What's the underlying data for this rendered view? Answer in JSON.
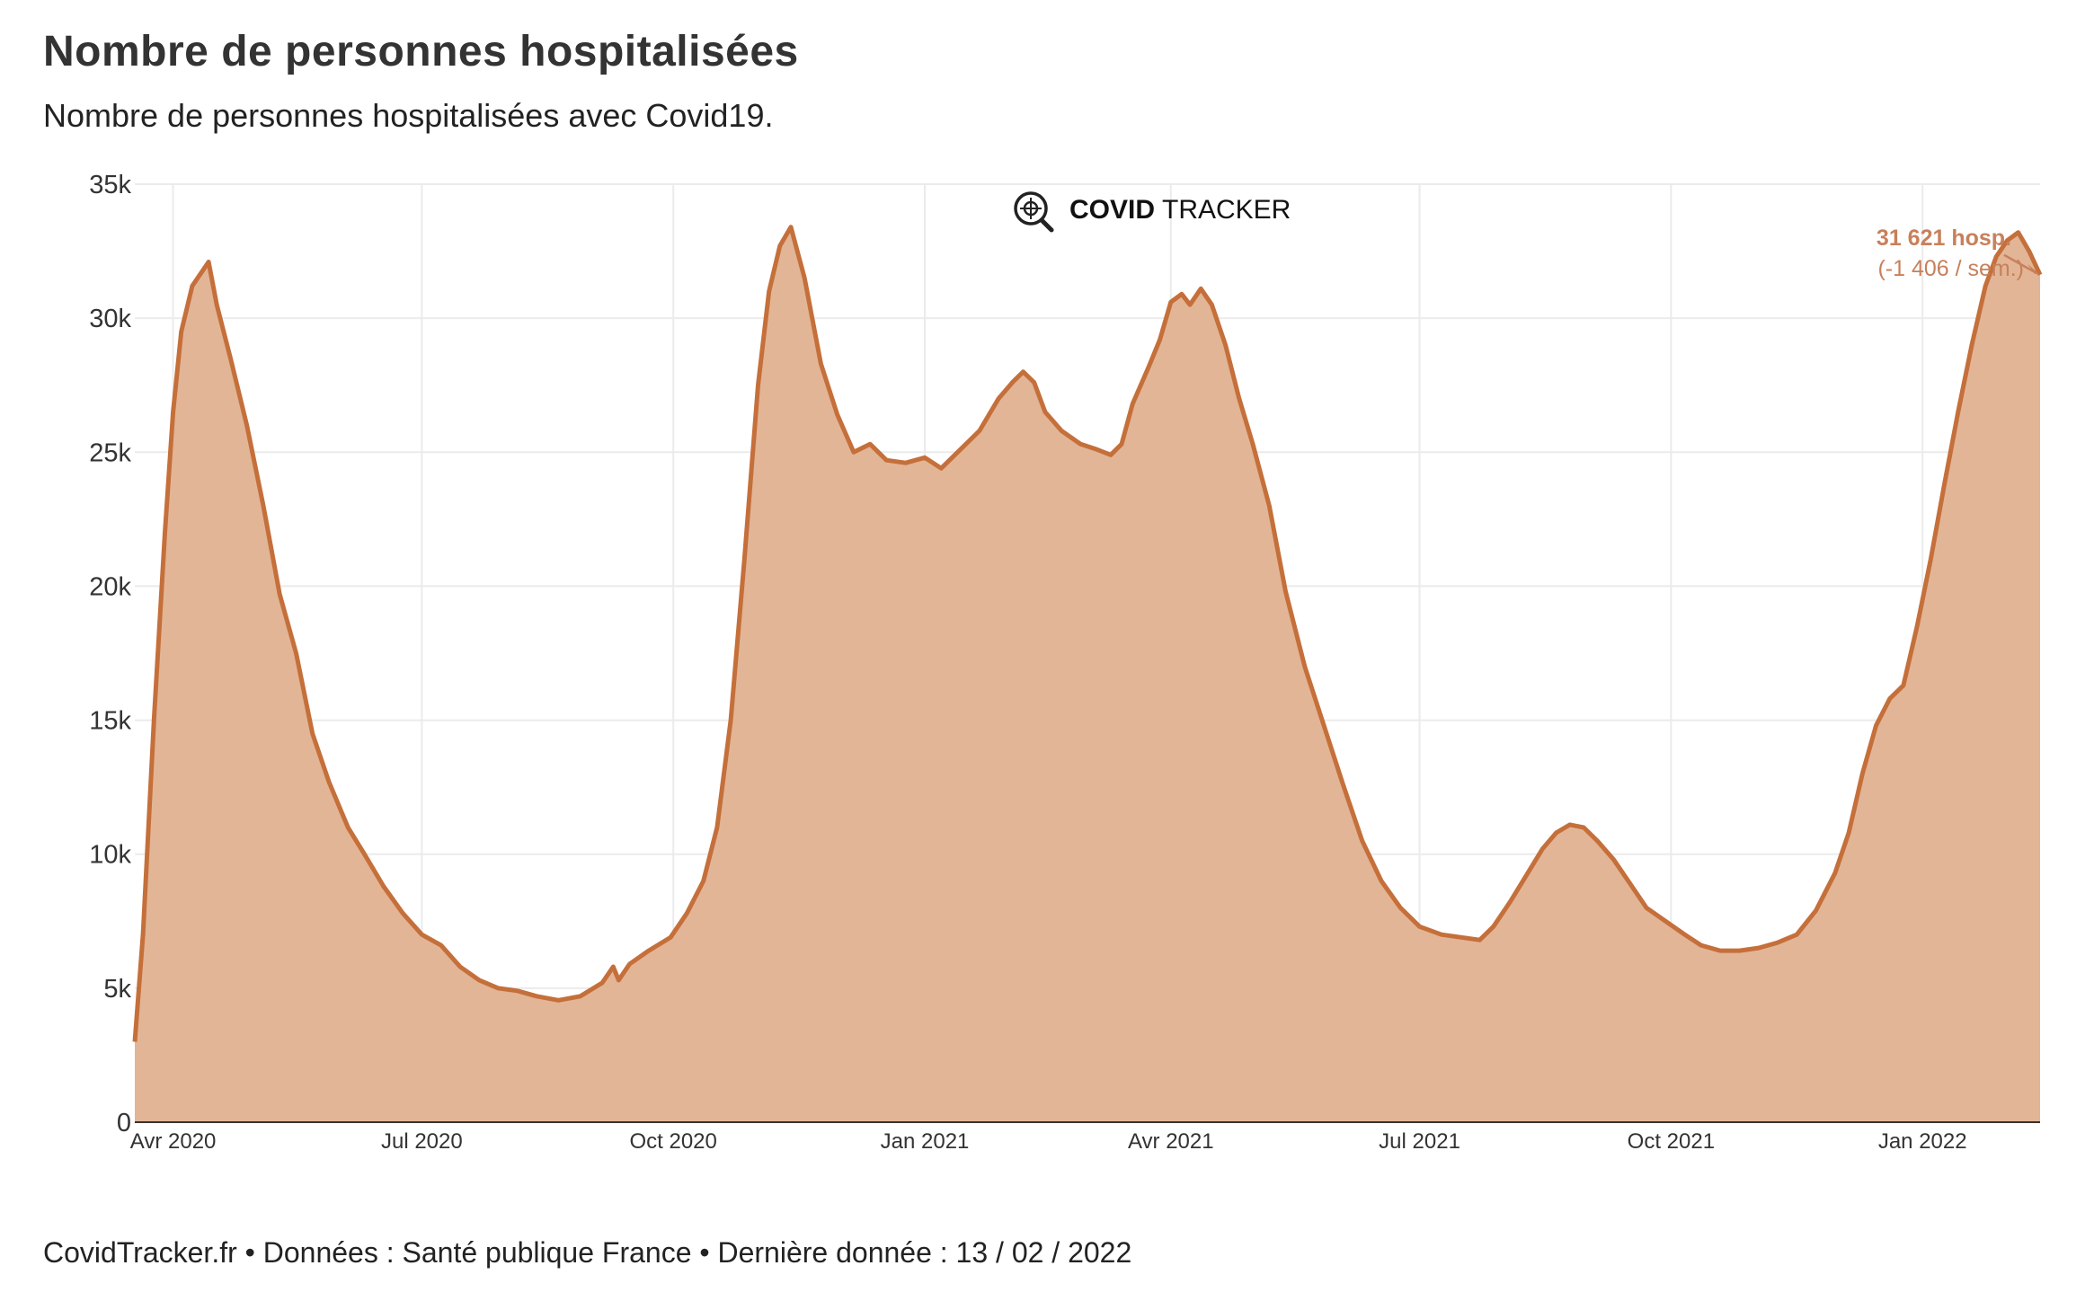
{
  "header": {
    "title": "Nombre de personnes hospitalisées",
    "subtitle": "Nombre de personnes hospitalisées avec Covid19."
  },
  "footer": {
    "text": "CovidTracker.fr • Données : Santé publique France • Dernière donnée : 13 / 02 / 2022"
  },
  "logo": {
    "icon": "virus-magnifier-icon",
    "bold": "COVID",
    "light": "TRACKER"
  },
  "colors": {
    "line": "#c56f3a",
    "fill": "#e2b596",
    "grid": "#ebebeb",
    "annotation": "#c8805a"
  },
  "chart_data": {
    "type": "area",
    "title": "Nombre de personnes hospitalisées",
    "xlabel": "",
    "ylabel": "",
    "xlim": [
      "2020-03-18",
      "2022-02-13"
    ],
    "ylim": [
      0,
      35000
    ],
    "grid": true,
    "yticks": [
      {
        "value": 0,
        "label": "0"
      },
      {
        "value": 5000,
        "label": "5k"
      },
      {
        "value": 10000,
        "label": "10k"
      },
      {
        "value": 15000,
        "label": "15k"
      },
      {
        "value": 20000,
        "label": "20k"
      },
      {
        "value": 25000,
        "label": "25k"
      },
      {
        "value": 30000,
        "label": "30k"
      },
      {
        "value": 35000,
        "label": "35k"
      }
    ],
    "xticks": [
      {
        "date": "2020-04-01",
        "label": "Avr 2020"
      },
      {
        "date": "2020-07-01",
        "label": "Jul 2020"
      },
      {
        "date": "2020-10-01",
        "label": "Oct 2020"
      },
      {
        "date": "2021-01-01",
        "label": "Jan 2021"
      },
      {
        "date": "2021-04-01",
        "label": "Avr 2021"
      },
      {
        "date": "2021-07-01",
        "label": "Jul 2021"
      },
      {
        "date": "2021-10-01",
        "label": "Oct 2021"
      },
      {
        "date": "2022-01-01",
        "label": "Jan 2022"
      }
    ],
    "series": [
      {
        "values": [
          [
            "2020-03-18",
            3000
          ],
          [
            "2020-03-21",
            7000
          ],
          [
            "2020-03-25",
            15000
          ],
          [
            "2020-03-29",
            22000
          ],
          [
            "2020-04-01",
            26500
          ],
          [
            "2020-04-04",
            29500
          ],
          [
            "2020-04-08",
            31200
          ],
          [
            "2020-04-14",
            32100
          ],
          [
            "2020-04-17",
            30500
          ],
          [
            "2020-04-22",
            28500
          ],
          [
            "2020-04-28",
            26000
          ],
          [
            "2020-05-04",
            23000
          ],
          [
            "2020-05-10",
            19700
          ],
          [
            "2020-05-16",
            17500
          ],
          [
            "2020-05-22",
            14500
          ],
          [
            "2020-05-28",
            12700
          ],
          [
            "2020-06-04",
            11000
          ],
          [
            "2020-06-10",
            10000
          ],
          [
            "2020-06-17",
            8800
          ],
          [
            "2020-06-24",
            7800
          ],
          [
            "2020-07-01",
            7000
          ],
          [
            "2020-07-08",
            6600
          ],
          [
            "2020-07-15",
            5800
          ],
          [
            "2020-07-22",
            5300
          ],
          [
            "2020-07-29",
            5000
          ],
          [
            "2020-08-05",
            4900
          ],
          [
            "2020-08-12",
            4700
          ],
          [
            "2020-08-20",
            4550
          ],
          [
            "2020-08-28",
            4700
          ],
          [
            "2020-09-05",
            5200
          ],
          [
            "2020-09-09",
            5800
          ],
          [
            "2020-09-11",
            5300
          ],
          [
            "2020-09-15",
            5900
          ],
          [
            "2020-09-22",
            6400
          ],
          [
            "2020-09-30",
            6900
          ],
          [
            "2020-10-06",
            7800
          ],
          [
            "2020-10-12",
            9000
          ],
          [
            "2020-10-17",
            11000
          ],
          [
            "2020-10-22",
            15000
          ],
          [
            "2020-10-27",
            21000
          ],
          [
            "2020-11-01",
            27500
          ],
          [
            "2020-11-05",
            31000
          ],
          [
            "2020-11-09",
            32700
          ],
          [
            "2020-11-13",
            33400
          ],
          [
            "2020-11-18",
            31500
          ],
          [
            "2020-11-24",
            28300
          ],
          [
            "2020-11-30",
            26400
          ],
          [
            "2020-12-06",
            25000
          ],
          [
            "2020-12-12",
            25300
          ],
          [
            "2020-12-18",
            24700
          ],
          [
            "2020-12-25",
            24600
          ],
          [
            "2021-01-01",
            24800
          ],
          [
            "2021-01-07",
            24400
          ],
          [
            "2021-01-14",
            25100
          ],
          [
            "2021-01-21",
            25800
          ],
          [
            "2021-01-28",
            27000
          ],
          [
            "2021-02-02",
            27600
          ],
          [
            "2021-02-06",
            28000
          ],
          [
            "2021-02-10",
            27600
          ],
          [
            "2021-02-14",
            26500
          ],
          [
            "2021-02-20",
            25800
          ],
          [
            "2021-02-27",
            25300
          ],
          [
            "2021-03-05",
            25100
          ],
          [
            "2021-03-10",
            24900
          ],
          [
            "2021-03-14",
            25300
          ],
          [
            "2021-03-18",
            26800
          ],
          [
            "2021-03-24",
            28200
          ],
          [
            "2021-03-28",
            29200
          ],
          [
            "2021-04-01",
            30600
          ],
          [
            "2021-04-05",
            30900
          ],
          [
            "2021-04-08",
            30500
          ],
          [
            "2021-04-12",
            31100
          ],
          [
            "2021-04-16",
            30500
          ],
          [
            "2021-04-21",
            29000
          ],
          [
            "2021-04-26",
            27000
          ],
          [
            "2021-05-01",
            25300
          ],
          [
            "2021-05-07",
            23000
          ],
          [
            "2021-05-13",
            19800
          ],
          [
            "2021-05-20",
            17000
          ],
          [
            "2021-05-27",
            14800
          ],
          [
            "2021-06-03",
            12600
          ],
          [
            "2021-06-10",
            10500
          ],
          [
            "2021-06-17",
            9000
          ],
          [
            "2021-06-24",
            8000
          ],
          [
            "2021-07-01",
            7300
          ],
          [
            "2021-07-09",
            7000
          ],
          [
            "2021-07-16",
            6900
          ],
          [
            "2021-07-23",
            6800
          ],
          [
            "2021-07-28",
            7300
          ],
          [
            "2021-08-03",
            8200
          ],
          [
            "2021-08-09",
            9200
          ],
          [
            "2021-08-15",
            10200
          ],
          [
            "2021-08-20",
            10800
          ],
          [
            "2021-08-25",
            11100
          ],
          [
            "2021-08-30",
            11000
          ],
          [
            "2021-09-04",
            10500
          ],
          [
            "2021-09-10",
            9800
          ],
          [
            "2021-09-16",
            8900
          ],
          [
            "2021-09-22",
            8000
          ],
          [
            "2021-09-29",
            7500
          ],
          [
            "2021-10-06",
            7000
          ],
          [
            "2021-10-12",
            6600
          ],
          [
            "2021-10-19",
            6400
          ],
          [
            "2021-10-26",
            6400
          ],
          [
            "2021-11-02",
            6500
          ],
          [
            "2021-11-09",
            6700
          ],
          [
            "2021-11-16",
            7000
          ],
          [
            "2021-11-23",
            7900
          ],
          [
            "2021-11-30",
            9300
          ],
          [
            "2021-12-05",
            10800
          ],
          [
            "2021-12-10",
            13000
          ],
          [
            "2021-12-15",
            14800
          ],
          [
            "2021-12-20",
            15800
          ],
          [
            "2021-12-25",
            16300
          ],
          [
            "2021-12-30",
            18500
          ],
          [
            "2022-01-04",
            21000
          ],
          [
            "2022-01-09",
            23800
          ],
          [
            "2022-01-14",
            26500
          ],
          [
            "2022-01-19",
            29000
          ],
          [
            "2022-01-24",
            31200
          ],
          [
            "2022-01-28",
            32300
          ],
          [
            "2022-02-01",
            32900
          ],
          [
            "2022-02-05",
            33200
          ],
          [
            "2022-02-09",
            32500
          ],
          [
            "2022-02-13",
            31621
          ]
        ]
      }
    ],
    "annotation": {
      "date": "2022-02-13",
      "value": 31621,
      "line1": "31 621 hosp.",
      "line2": "(-1 406 / sem.)"
    }
  }
}
